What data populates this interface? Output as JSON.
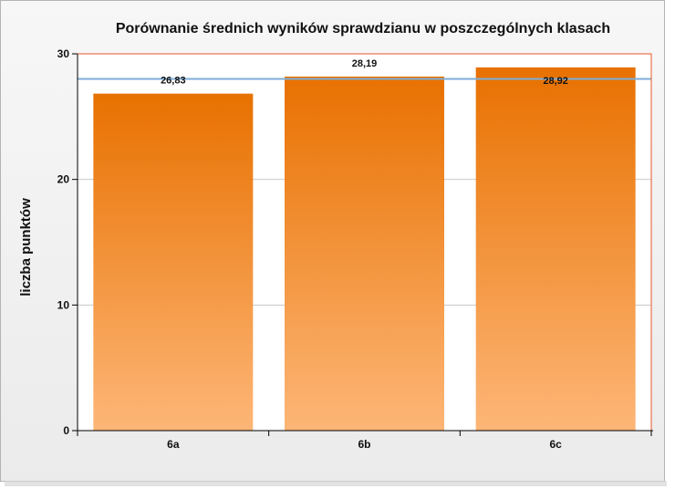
{
  "chart_data": {
    "type": "bar",
    "title": "Porównanie średnich wyników sprawdzianu w poszczególnych klasach",
    "ylabel": "liczba punktów",
    "xlabel": "",
    "categories": [
      "6a",
      "6b",
      "6c"
    ],
    "values": [
      26.83,
      28.19,
      28.92
    ],
    "value_labels": [
      "26,83",
      "28,19",
      "28,92"
    ],
    "ylim": [
      0,
      30
    ],
    "yticks": [
      0,
      10,
      20,
      30
    ],
    "reference_line": 28,
    "grid": true,
    "legend": "none",
    "colors": {
      "bar_top": "#e87100",
      "bar_bottom": "#fdb677",
      "plot_border": "#e4582a",
      "reference_line": "#7eaed8",
      "gridline": "#c8c8c8",
      "frame_bg": "#f2f2f2"
    }
  }
}
